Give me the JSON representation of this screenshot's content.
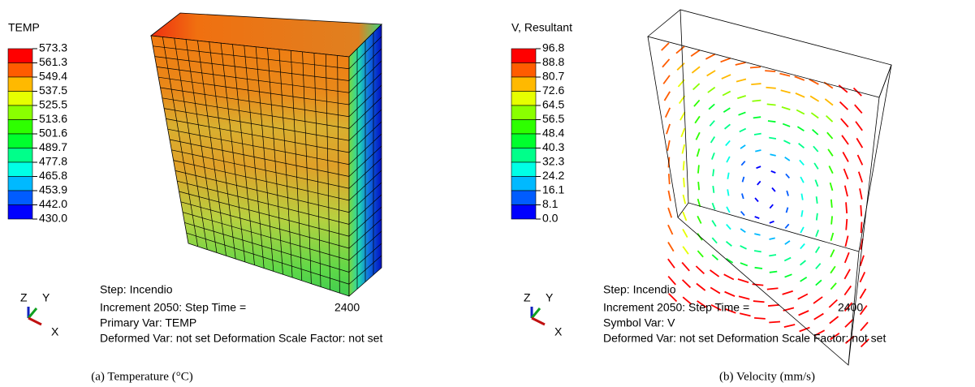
{
  "panels": [
    {
      "legend": {
        "title": "TEMP",
        "labels": [
          "573.3",
          "561.3",
          "549.4",
          "537.5",
          "525.5",
          "513.6",
          "501.6",
          "489.7",
          "477.8",
          "465.8",
          "453.9",
          "442.0",
          "430.0"
        ],
        "colors": [
          "#ff0000",
          "#ff5c00",
          "#ffb900",
          "#e6ff00",
          "#8aff00",
          "#2eff00",
          "#00ff2e",
          "#00ff8a",
          "#00ffe6",
          "#00b9ff",
          "#005cff",
          "#0000ff"
        ]
      },
      "info": {
        "step": "Step: Incendio",
        "increment": "Increment  2050: Step Time =",
        "time": "2400",
        "var": "Primary Var: TEMP",
        "deformed": "Deformed Var: not set   Deformation Scale Factor: not set"
      },
      "triad": {
        "z": "Z",
        "y": "Y",
        "x": "X"
      },
      "caption": "(a) Temperature (°C)"
    },
    {
      "legend": {
        "title": "V, Resultant",
        "labels": [
          "96.8",
          "88.8",
          "80.7",
          "72.6",
          "64.5",
          "56.5",
          "48.4",
          "40.3",
          "32.3",
          "24.2",
          "16.1",
          "8.1",
          "0.0"
        ],
        "colors": [
          "#ff0000",
          "#ff5c00",
          "#ffb900",
          "#e6ff00",
          "#8aff00",
          "#2eff00",
          "#00ff2e",
          "#00ff8a",
          "#00ffe6",
          "#00b9ff",
          "#005cff",
          "#0000ff"
        ]
      },
      "info": {
        "step": "Step: Incendio",
        "increment": "Increment  2050: Step Time =",
        "time": "2400",
        "var": "Symbol Var: V",
        "deformed": "Deformed Var: not set   Deformation Scale Factor: not set"
      },
      "triad": {
        "z": "Z",
        "y": "Y",
        "x": "X"
      },
      "caption": "(b) Velocity (mm/s)"
    }
  ]
}
